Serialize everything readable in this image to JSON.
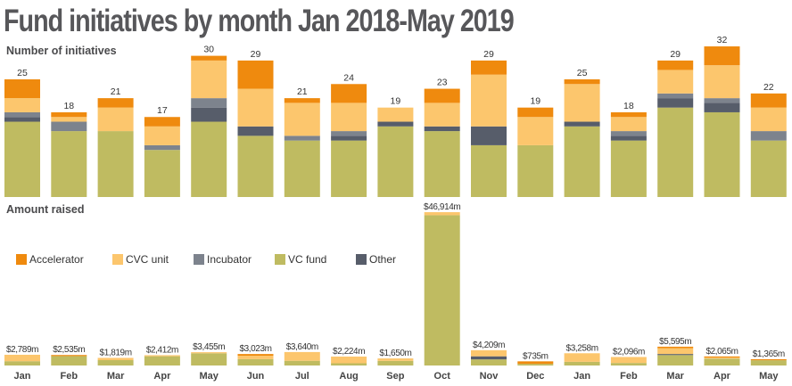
{
  "chart_data": [
    {
      "type": "bar",
      "stacked": true,
      "title": "Fund initiatives by month Jan 2018-May 2019",
      "subtitle": "Number of initiatives",
      "categories": [
        "Jan",
        "Feb",
        "Mar",
        "Apr",
        "May",
        "Jun",
        "Jul",
        "Aug",
        "Sep",
        "Oct",
        "Nov",
        "Dec",
        "Jan",
        "Feb",
        "Mar",
        "Apr",
        "May"
      ],
      "totals": [
        25,
        18,
        21,
        17,
        30,
        29,
        21,
        24,
        19,
        23,
        29,
        19,
        25,
        18,
        29,
        32,
        22
      ],
      "total_labels": [
        "25",
        "18",
        "21",
        "17",
        "30",
        "29",
        "21",
        "24",
        "19",
        "23",
        "29",
        "19",
        "25",
        "18",
        "29",
        "32",
        "22"
      ],
      "series": [
        {
          "name": "VC fund",
          "color": "#bfbb61",
          "values": [
            16,
            14,
            14,
            10,
            16,
            13,
            12,
            12,
            15,
            14,
            11,
            11,
            15,
            12,
            19,
            18,
            12
          ]
        },
        {
          "name": "Other",
          "color": "#575d6a",
          "values": [
            1,
            0,
            0,
            0,
            3,
            2,
            0,
            1,
            1,
            1,
            4,
            0,
            1,
            1,
            2,
            2,
            0
          ]
        },
        {
          "name": "Incubator",
          "color": "#7d838d",
          "values": [
            1,
            2,
            0,
            1,
            2,
            0,
            1,
            1,
            0,
            0,
            0,
            0,
            0,
            1,
            1,
            1,
            2
          ]
        },
        {
          "name": "CVC unit",
          "color": "#fcc66d",
          "values": [
            3,
            1,
            5,
            4,
            8,
            8,
            7,
            6,
            3,
            5,
            11,
            6,
            8,
            3,
            5,
            7,
            5
          ]
        },
        {
          "name": "Accelerator",
          "color": "#ef8a0e",
          "values": [
            4,
            1,
            2,
            2,
            1,
            6,
            1,
            4,
            0,
            3,
            3,
            2,
            1,
            1,
            2,
            4,
            3
          ]
        }
      ],
      "ylim": [
        0,
        32
      ],
      "grid": false
    },
    {
      "type": "bar",
      "stacked": true,
      "subtitle": "Amount raised",
      "unit": "$m",
      "categories": [
        "Jan",
        "Feb",
        "Mar",
        "Apr",
        "May",
        "Jun",
        "Jul",
        "Aug",
        "Sep",
        "Oct",
        "Nov",
        "Dec",
        "Jan",
        "Feb",
        "Mar",
        "Apr",
        "May"
      ],
      "totals": [
        2789,
        2535,
        1819,
        2412,
        3455,
        3023,
        3640,
        2224,
        1650,
        46914,
        4209,
        735,
        3258,
        2096,
        5595,
        2065,
        1365
      ],
      "total_labels": [
        "$2,789m",
        "$2,535m",
        "$1,819m",
        "$2,412m",
        "$3,455m",
        "$3,023m",
        "$3,640m",
        "$2,224m",
        "$1,650m",
        "$46,914m",
        "$4,209m",
        "$735m",
        "$3,258m",
        "$2,096m",
        "$5,595m",
        "$2,065m",
        "$1,365m"
      ],
      "series_shares": [
        {
          "name": "VC fund",
          "color": "#bfbb61",
          "values": [
            0.4,
            0.95,
            0.7,
            0.97,
            0.95,
            0.55,
            0.35,
            0.25,
            0.65,
            0.98,
            0.4,
            0.4,
            0.3,
            0.3,
            0.57,
            0.82,
            0.85
          ]
        },
        {
          "name": "Other",
          "color": "#575d6a",
          "values": [
            0,
            0,
            0,
            0,
            0,
            0,
            0,
            0,
            0,
            0,
            0.2,
            0,
            0,
            0,
            0.03,
            0,
            0
          ]
        },
        {
          "name": "Incubator",
          "color": "#7d838d",
          "values": [
            0,
            0,
            0,
            0,
            0,
            0,
            0,
            0,
            0,
            0,
            0,
            0,
            0,
            0,
            0,
            0,
            0
          ]
        },
        {
          "name": "CVC unit",
          "color": "#fcc66d",
          "values": [
            0.6,
            0,
            0.3,
            0.03,
            0.05,
            0.3,
            0.65,
            0.75,
            0.35,
            0.02,
            0.4,
            0,
            0.7,
            0.7,
            0.32,
            0.1,
            0
          ]
        },
        {
          "name": "Accelerator",
          "color": "#ef8a0e",
          "values": [
            0,
            0.05,
            0,
            0,
            0,
            0.15,
            0,
            0,
            0,
            0,
            0,
            0.6,
            0,
            0,
            0.08,
            0.08,
            0.15
          ]
        }
      ],
      "ylim": [
        0,
        47000
      ],
      "grid": false
    }
  ],
  "legend": {
    "placement": "left",
    "items": [
      {
        "label": "Accelerator",
        "color": "#ef8a0e"
      },
      {
        "label": "CVC unit",
        "color": "#fcc66d"
      },
      {
        "label": "Incubator",
        "color": "#7d838d"
      },
      {
        "label": "VC fund",
        "color": "#bfbb61"
      },
      {
        "label": "Other",
        "color": "#575d6a"
      }
    ]
  },
  "text": {
    "title": "Fund initiatives by month Jan 2018-May 2019",
    "top_label": "Number of initiatives",
    "bottom_label": "Amount raised"
  }
}
